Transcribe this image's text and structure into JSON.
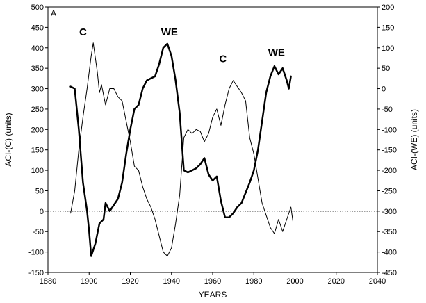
{
  "chart_data": {
    "type": "line",
    "panel_label": "A",
    "xlabel": "YEARS",
    "ylabel_left": "ACI-(C) (units)",
    "ylabel_right": "ACI-(WE) (units)",
    "xlim": [
      1880,
      2040
    ],
    "ylim_left": [
      -150,
      500
    ],
    "ylim_right": [
      -450,
      200
    ],
    "x_ticks": [
      1880,
      1900,
      1920,
      1940,
      1960,
      1980,
      2000,
      2020,
      2040
    ],
    "y_ticks_left": [
      -150,
      -100,
      -50,
      0,
      50,
      100,
      150,
      200,
      250,
      300,
      350,
      400,
      450,
      500
    ],
    "y_ticks_right": [
      -450,
      -400,
      -350,
      -300,
      -250,
      -200,
      -150,
      -100,
      -50,
      0,
      50,
      100,
      150,
      200
    ],
    "reference_line": {
      "y": 0,
      "style": "dotted"
    },
    "annotations": [
      {
        "text": "C",
        "x": 1897,
        "y": 430
      },
      {
        "text": "WE",
        "x": 1939,
        "y": 430
      },
      {
        "text": "C",
        "x": 1965,
        "y": 365
      },
      {
        "text": "WE",
        "x": 1991,
        "y": 380
      }
    ],
    "series": [
      {
        "axis": "left",
        "line_width": 1,
        "x": [
          1891,
          1893,
          1895,
          1897,
          1899,
          1901,
          1902,
          1904,
          1905,
          1906,
          1908,
          1910,
          1912,
          1914,
          1916,
          1918,
          1920,
          1922,
          1924,
          1926,
          1928,
          1930,
          1932,
          1934,
          1936,
          1938,
          1940,
          1942,
          1944,
          1946,
          1948,
          1950,
          1952,
          1954,
          1956,
          1958,
          1960,
          1962,
          1964,
          1966,
          1968,
          1970,
          1972,
          1974,
          1976,
          1978,
          1980,
          1982,
          1984,
          1986,
          1988,
          1990,
          1992,
          1994,
          1996,
          1998,
          1999
        ],
        "values": [
          -5,
          50,
          150,
          230,
          300,
          380,
          412,
          340,
          290,
          310,
          260,
          300,
          300,
          280,
          270,
          220,
          170,
          110,
          100,
          60,
          30,
          10,
          -20,
          -60,
          -100,
          -110,
          -90,
          -30,
          40,
          180,
          200,
          190,
          200,
          195,
          170,
          190,
          230,
          250,
          210,
          260,
          300,
          320,
          305,
          290,
          270,
          180,
          140,
          80,
          20,
          -10,
          -40,
          -55,
          -20,
          -50,
          -20,
          10,
          -25
        ]
      },
      {
        "axis": "right",
        "line_width": 2.5,
        "x": [
          1891,
          1893,
          1895,
          1897,
          1899,
          1900,
          1901,
          1903,
          1905,
          1907,
          1908,
          1910,
          1912,
          1914,
          1916,
          1918,
          1920,
          1922,
          1924,
          1926,
          1928,
          1930,
          1932,
          1934,
          1936,
          1938,
          1940,
          1942,
          1944,
          1946,
          1948,
          1950,
          1952,
          1954,
          1956,
          1958,
          1960,
          1962,
          1964,
          1966,
          1968,
          1970,
          1972,
          1974,
          1976,
          1978,
          1980,
          1982,
          1984,
          1986,
          1988,
          1990,
          1992,
          1994,
          1996,
          1997,
          1998
        ],
        "values": [
          5,
          0,
          -100,
          -230,
          -300,
          -350,
          -410,
          -380,
          -330,
          -320,
          -280,
          -300,
          -285,
          -270,
          -230,
          -160,
          -100,
          -50,
          -40,
          0,
          20,
          25,
          30,
          60,
          100,
          110,
          80,
          20,
          -60,
          -200,
          -205,
          -200,
          -195,
          -185,
          -170,
          -210,
          -225,
          -215,
          -275,
          -315,
          -315,
          -305,
          -290,
          -280,
          -255,
          -230,
          -200,
          -150,
          -80,
          -10,
          30,
          55,
          35,
          50,
          20,
          0,
          30
        ]
      }
    ]
  }
}
